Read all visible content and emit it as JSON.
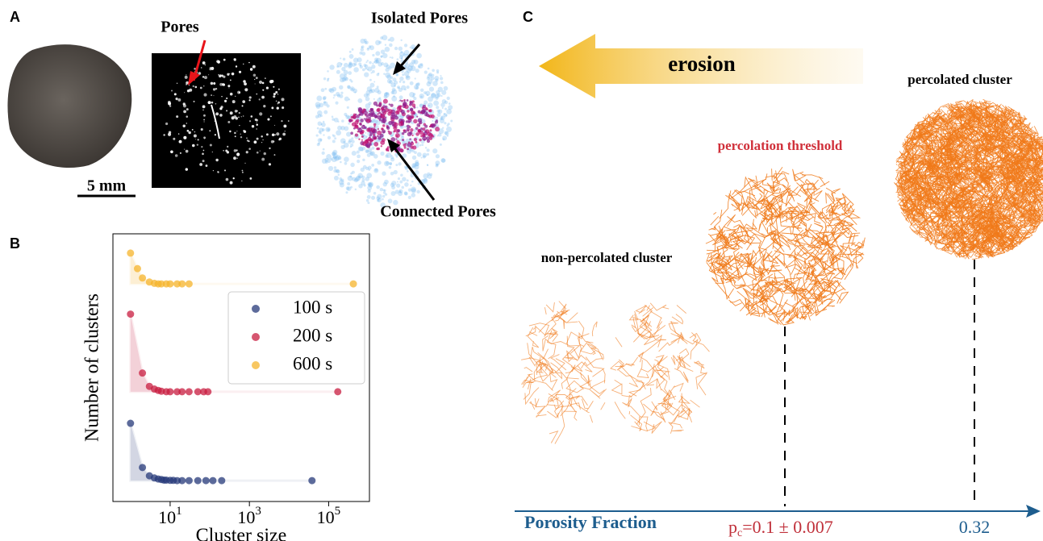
{
  "panels": {
    "a": "A",
    "b": "B",
    "c": "C"
  },
  "panel_a": {
    "pores": "Pores",
    "scale_bar": "5 mm",
    "isolated": "Isolated Pores",
    "connected": "Connected Pores"
  },
  "panel_c": {
    "arrow": "erosion",
    "percolated": "percolated cluster",
    "threshold": "percolation threshold",
    "non_percolated": "non-percolated cluster",
    "axis": "Porosity Fraction",
    "pc": {
      "symbol": "p",
      "sub": "c",
      "text": "=0.1 ± 0.007"
    },
    "value": "0.32"
  },
  "chart_data": {
    "type": "scatter",
    "x_label": "Cluster size",
    "y_label": "Number of clusters",
    "log_x": true,
    "legend": "upper right",
    "xlim": [
      0.36,
      1070000
    ],
    "ylim": [
      0,
      10
    ],
    "xticks": [
      {
        "value": 10,
        "label": "10^1"
      },
      {
        "value": 1000,
        "label": "10^3"
      },
      {
        "value": 100000,
        "label": "10^5"
      }
    ],
    "series": [
      {
        "name": "100 s",
        "color": "#27397a",
        "x": [
          1,
          2,
          3,
          4,
          5,
          6,
          7,
          8,
          10,
          12,
          15,
          20,
          30,
          50,
          80,
          120,
          200,
          38000
        ],
        "values": [
          2.92,
          1.27,
          0.96,
          0.88,
          0.84,
          0.82,
          0.8,
          0.8,
          0.79,
          0.79,
          0.78,
          0.78,
          0.78,
          0.78,
          0.78,
          0.78,
          0.78,
          0.78
        ]
      },
      {
        "name": "200 s",
        "color": "#c81d40",
        "x": [
          1,
          2,
          3,
          4,
          5,
          6,
          8,
          10,
          15,
          20,
          30,
          50,
          70,
          90,
          170000
        ],
        "values": [
          7.0,
          4.8,
          4.3,
          4.2,
          4.15,
          4.12,
          4.1,
          4.1,
          4.1,
          4.1,
          4.1,
          4.1,
          4.1,
          4.1,
          4.1
        ]
      },
      {
        "name": "600 s",
        "color": "#f6b42c",
        "x": [
          1,
          1.5,
          2,
          3,
          4,
          5,
          6,
          8,
          10,
          15,
          20,
          30,
          420000
        ],
        "values": [
          9.28,
          8.7,
          8.35,
          8.2,
          8.15,
          8.13,
          8.13,
          8.13,
          8.13,
          8.13,
          8.13,
          8.13,
          8.13
        ]
      }
    ]
  }
}
